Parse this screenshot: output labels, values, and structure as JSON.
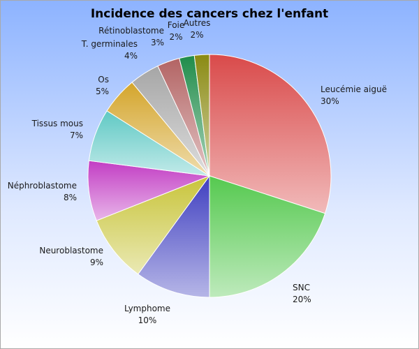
{
  "chart_data": {
    "type": "pie",
    "title": "Incidence des cancers chez l'enfant",
    "slices": [
      {
        "label": "Leucémie aiguë",
        "value": 30,
        "value_label": "30%",
        "color": "#d94a4a"
      },
      {
        "label": "SNC",
        "value": 20,
        "value_label": "20%",
        "color": "#55c94f"
      },
      {
        "label": "Lymphome",
        "value": 10,
        "value_label": "10%",
        "color": "#3f3fc0"
      },
      {
        "label": "Neuroblastome",
        "value": 9,
        "value_label": "9%",
        "color": "#c8c43a"
      },
      {
        "label": "Néphroblastome",
        "value": 8,
        "value_label": "8%",
        "color": "#c23dc4"
      },
      {
        "label": "Tissus mous",
        "value": 7,
        "value_label": "7%",
        "color": "#5fc9c4"
      },
      {
        "label": "Os",
        "value": 5,
        "value_label": "5%",
        "color": "#d4a52b"
      },
      {
        "label": "T. germinales",
        "value": 4,
        "value_label": "4%",
        "color": "#a6a6a6"
      },
      {
        "label": "Rétinoblastome",
        "value": 3,
        "value_label": "3%",
        "color": "#b36464"
      },
      {
        "label": "Foie",
        "value": 2,
        "value_label": "2%",
        "color": "#1f8c4a"
      },
      {
        "label": "Autres",
        "value": 2,
        "value_label": "2%",
        "color": "#8a8a12"
      }
    ],
    "legend": "none",
    "start": "top",
    "direction": "clockwise"
  }
}
